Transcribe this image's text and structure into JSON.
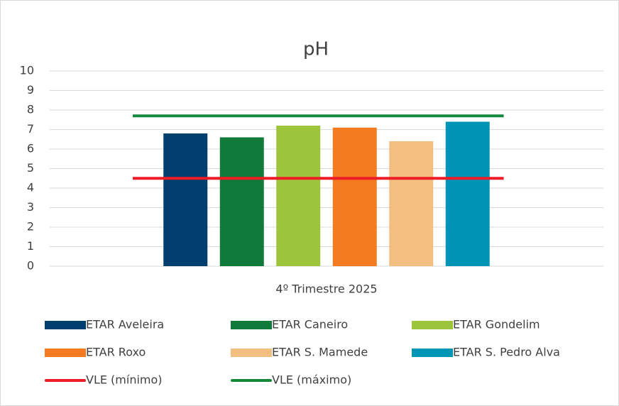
{
  "chart_data": {
    "type": "bar",
    "title": "pH",
    "categories": [
      "4º Trimestre 2025"
    ],
    "ylim": [
      0,
      10
    ],
    "yticks": [
      0,
      1,
      2,
      3,
      4,
      5,
      6,
      7,
      8,
      9,
      10
    ],
    "grid": true,
    "legend": "bottom",
    "series": [
      {
        "name": "ETAR Aveleira",
        "color": "#003f6e",
        "values": [
          6.8
        ]
      },
      {
        "name": "ETAR Caneiro",
        "color": "#0f7a3a",
        "values": [
          6.6
        ]
      },
      {
        "name": "ETAR Gondelim",
        "color": "#9cc53c",
        "values": [
          7.2
        ]
      },
      {
        "name": "ETAR Roxo",
        "color": "#f47b20",
        "values": [
          7.1
        ]
      },
      {
        "name": "ETAR S. Mamede",
        "color": "#f2bf80",
        "values": [
          6.4
        ]
      },
      {
        "name": "ETAR S. Pedro Alva",
        "color": "#0095b6",
        "values": [
          7.4
        ]
      },
      {
        "name": "VLE (mínimo)",
        "color": "#ee1c25",
        "type": "line",
        "values": [
          4.5
        ]
      },
      {
        "name": "VLE (máximo)",
        "color": "#138a3c",
        "type": "line",
        "values": [
          7.7
        ]
      }
    ]
  }
}
